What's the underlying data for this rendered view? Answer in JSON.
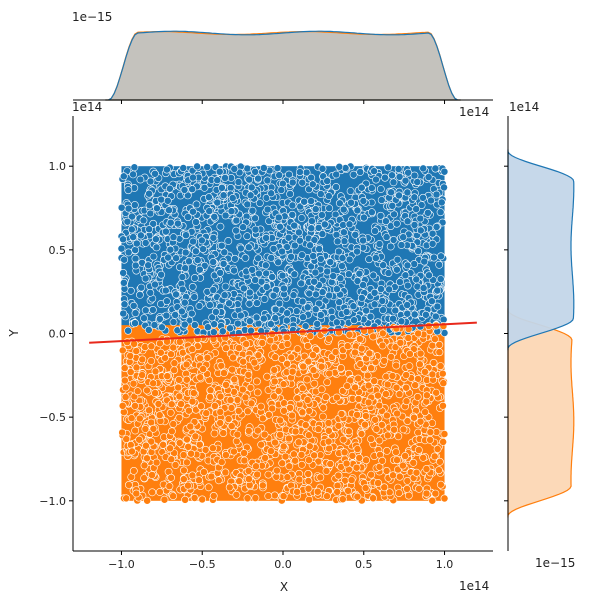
{
  "chart_data": {
    "type": "scatter",
    "xlabel": "X",
    "ylabel": "Y",
    "x_offset_text": "1e14",
    "y_offset_text": "1e14",
    "top_marginal_offset_text": "1e−15",
    "right_marginal_offset_text": "1e−15",
    "xlim": [
      -1.3,
      1.3
    ],
    "ylim": [
      -1.3,
      1.3
    ],
    "x_ticks": [
      -1.0,
      -0.5,
      0.0,
      0.5,
      1.0
    ],
    "x_tick_labels": [
      "−1.0",
      "−0.5",
      "0.0",
      "0.5",
      "1.0"
    ],
    "y_ticks": [
      -1.0,
      -0.5,
      0.0,
      0.5,
      1.0
    ],
    "y_tick_labels": [
      "−1.0",
      "−0.5",
      "0.0",
      "0.5",
      "1.0"
    ],
    "grid": false,
    "series": [
      {
        "color": "#1f77b4",
        "x_range": [
          -1.0,
          1.0
        ],
        "y_range": [
          0.0,
          1.0
        ]
      },
      {
        "color": "#ff7f0e",
        "x_range": [
          -1.0,
          1.0
        ],
        "y_range": [
          -1.0,
          0.05
        ]
      }
    ],
    "fit_line": {
      "color": "#e8291c",
      "x": [
        -1.2,
        1.2
      ],
      "y": [
        -0.055,
        0.065
      ]
    },
    "marginal_x": {
      "overlap_color": "#c4c2bd",
      "series_colors": [
        "#1f77b4",
        "#ff7f0e"
      ],
      "range": [
        -1.1,
        1.1
      ]
    },
    "marginal_y": {
      "series_colors": [
        "#1f77b4",
        "#ff7f0e"
      ],
      "fill_colors": [
        "#c3d6e9",
        "#fcd9b8"
      ]
    }
  }
}
